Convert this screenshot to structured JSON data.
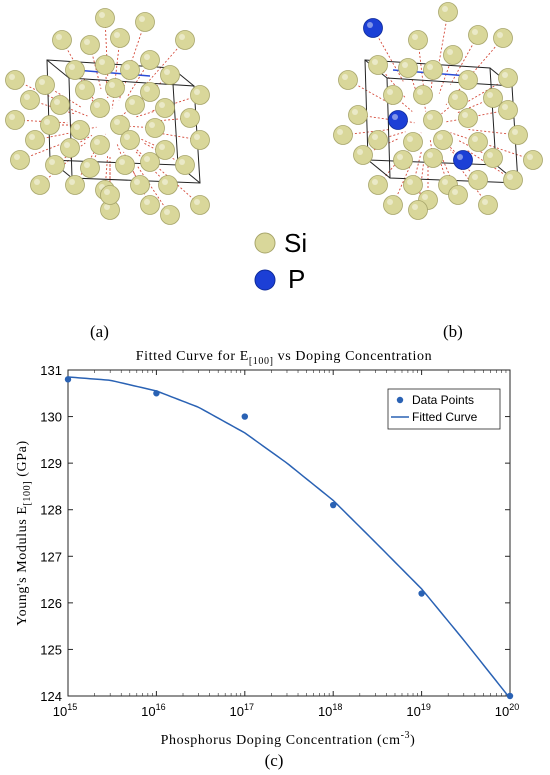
{
  "panels": {
    "a": "(a)",
    "b": "(b)",
    "c": "(c)"
  },
  "atom_legend": [
    {
      "label": "Si",
      "color": "#d9d79a"
    },
    {
      "label": "P",
      "color": "#1c3fd6"
    }
  ],
  "chart_data": {
    "type": "scatter",
    "title_main": "Fitted Curve for E",
    "title_sub": "[100]",
    "title_tail": " vs Doping Concentration",
    "ylabel_main": "Young's Modulus E",
    "ylabel_sub": "[100]",
    "ylabel_tail": " (GPa)",
    "xlabel_main": "Phosphorus Doping Concentration (cm",
    "xlabel_sup": "-3",
    "xlabel_tail": ")",
    "xscale": "log",
    "xlim": [
      1000000000000000.0,
      1e+20
    ],
    "ylim": [
      124,
      131
    ],
    "yticks": [
      124,
      125,
      126,
      127,
      128,
      129,
      130,
      131
    ],
    "xtick_base": "10",
    "xtick_exps": [
      "15",
      "16",
      "17",
      "18",
      "19",
      "20"
    ],
    "legend_position": "top-right",
    "points": {
      "name": "Data Points",
      "color": "#2a62b4",
      "x": [
        1000000000000000.0,
        1e+16,
        1e+17,
        1e+18,
        1e+19,
        1e+20
      ],
      "y": [
        130.8,
        130.5,
        130.0,
        128.1,
        126.2,
        124.0
      ]
    },
    "curve": {
      "name": "Fitted Curve",
      "color": "#2a62b4",
      "x": [
        1000000000000000.0,
        3000000000000000.0,
        1e+16,
        3e+16,
        1e+17,
        3e+17,
        1e+18,
        3e+18,
        1e+19,
        3e+19,
        1e+20
      ],
      "y": [
        130.85,
        130.78,
        130.55,
        130.2,
        129.65,
        129.0,
        128.2,
        127.3,
        126.3,
        125.2,
        123.95
      ]
    }
  }
}
